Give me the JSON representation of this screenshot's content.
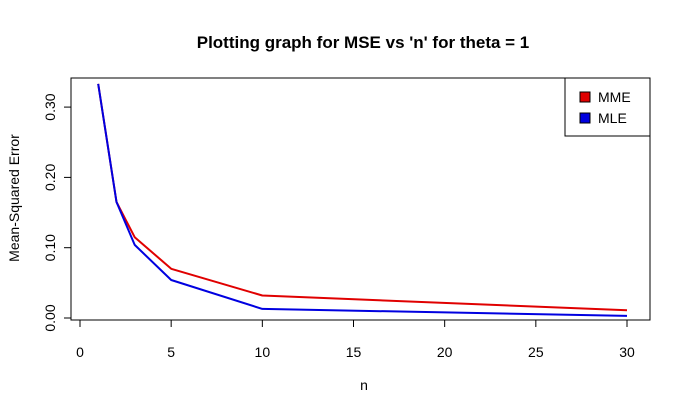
{
  "chart_data": {
    "type": "line",
    "title": "Plotting graph for MSE vs 'n' for theta =  1",
    "xlabel": "n",
    "ylabel": "Mean-Squared Error",
    "xlim": [
      0,
      30
    ],
    "ylim": [
      0,
      0.33
    ],
    "x_ticks": [
      0,
      5,
      10,
      15,
      20,
      25,
      30
    ],
    "x_tick_labels": [
      "0",
      "5",
      "10",
      "15",
      "20",
      "25",
      "30"
    ],
    "y_ticks": [
      0.0,
      0.1,
      0.2,
      0.3
    ],
    "y_tick_labels": [
      "0.00",
      "0.10",
      "0.20",
      "0.30"
    ],
    "legend_position": "top-right",
    "x": [
      1,
      2,
      3,
      5,
      10,
      30
    ],
    "series": [
      {
        "name": "MME",
        "color": "#e00000",
        "values": [
          0.333,
          0.165,
          0.115,
          0.07,
          0.032,
          0.011
        ]
      },
      {
        "name": "MLE",
        "color": "#0000e0",
        "values": [
          0.333,
          0.165,
          0.104,
          0.054,
          0.013,
          0.003
        ]
      }
    ]
  }
}
